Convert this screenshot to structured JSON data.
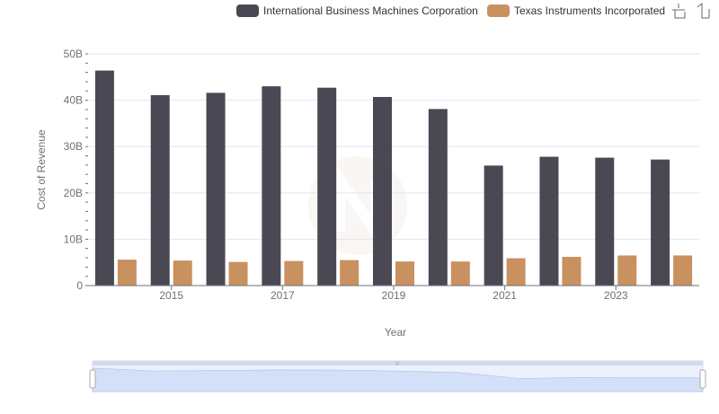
{
  "chart_data": {
    "type": "bar",
    "title": "",
    "xlabel": "Year",
    "ylabel": "Cost of Revenue",
    "x": [
      2014,
      2015,
      2016,
      2017,
      2018,
      2019,
      2020,
      2021,
      2022,
      2023,
      2024
    ],
    "x_tick_labels": [
      "2015",
      "2017",
      "2019",
      "2021",
      "2023"
    ],
    "y_tick_labels": [
      "0",
      "10B",
      "20B",
      "30B",
      "40B",
      "50B"
    ],
    "ylim": [
      0,
      50000000000
    ],
    "grid": true,
    "legend_position": "top-right",
    "series": [
      {
        "name": "International Business Machines Corporation",
        "color": "#4a4953",
        "values": [
          46400000000,
          41100000000,
          41600000000,
          43000000000,
          42700000000,
          40700000000,
          38100000000,
          25900000000,
          27800000000,
          27600000000,
          27200000000
        ]
      },
      {
        "name": "Texas Instruments Incorporated",
        "color": "#c8915f",
        "values": [
          5600000000,
          5400000000,
          5100000000,
          5300000000,
          5500000000,
          5200000000,
          5200000000,
          5900000000,
          6200000000,
          6500000000,
          6500000000
        ]
      }
    ]
  },
  "toolbar": {
    "icons": [
      "zoom-icon",
      "restore-icon"
    ]
  }
}
